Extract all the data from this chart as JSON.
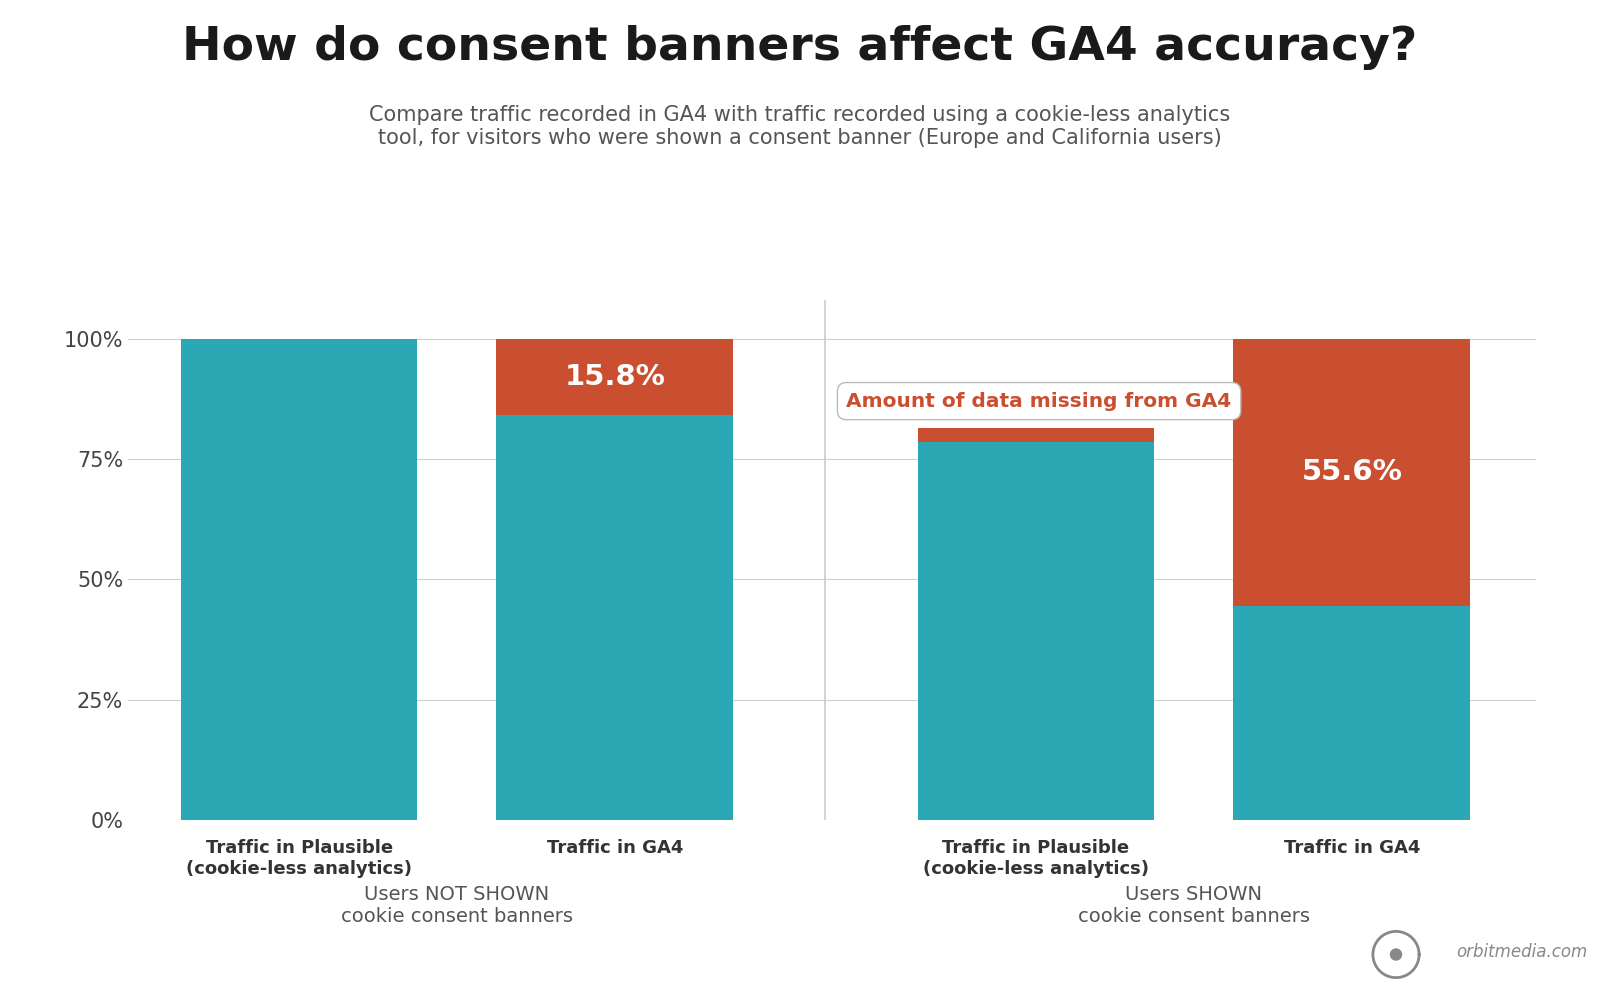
{
  "title": "How do consent banners affect GA4 accuracy?",
  "subtitle": "Compare traffic recorded in GA4 with traffic recorded using a cookie-less analytics\ntool, for visitors who were shown a consent banner (Europe and California users)",
  "background_color": "#ffffff",
  "teal_color": "#2ca8b4",
  "red_color": "#c94f30",
  "group1_label": "Users NOT SHOWN\ncookie consent banners",
  "group2_label": "Users SHOWN\ncookie consent banners",
  "bar1_teal": 100,
  "bar1_red": 0,
  "bar2_teal": 84.2,
  "bar2_red": 15.8,
  "bar3_teal": 78.5,
  "bar3_red": 3.0,
  "bar4_teal": 44.4,
  "bar4_red": 55.6,
  "bar_labels": [
    "Traffic in Plausible\n(cookie-less analytics)",
    "Traffic in GA4",
    "Traffic in Plausible\n(cookie-less analytics)",
    "Traffic in GA4"
  ],
  "annotation_text": "Amount of data missing from GA4",
  "annotation_color": "#c94f30",
  "label1_pct": "15.8%",
  "label2_pct": "55.6%",
  "yticks": [
    0,
    25,
    50,
    75,
    100
  ],
  "ylim": [
    0,
    108
  ],
  "title_fontsize": 34,
  "subtitle_fontsize": 15,
  "bar_label_fontsize": 13,
  "group_label_fontsize": 14,
  "pct_label_fontsize": 21,
  "orbit_text": "orbitmedia.com"
}
